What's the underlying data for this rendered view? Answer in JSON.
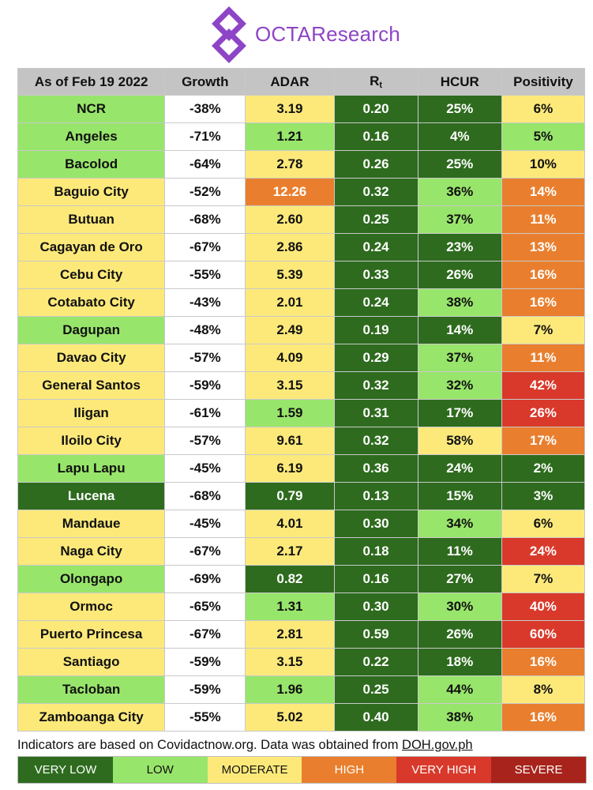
{
  "brand": {
    "name": "OCTAResearch",
    "accent": "#8e44c6"
  },
  "table": {
    "columns": {
      "as_of": "As of Feb 19 2022",
      "growth": "Growth",
      "adar": "ADAR",
      "rt_base": "R",
      "rt_sub": "t",
      "hcur": "HCUR",
      "positivity": "Positivity"
    },
    "rows": [
      {
        "name": "NCR",
        "name_level": "l",
        "growth": "-38%",
        "adar": "3.19",
        "adar_level": "m",
        "rt": "0.20",
        "rt_level": "vl",
        "hcur": "25%",
        "hcur_level": "vl",
        "pos": "6%",
        "pos_level": "m"
      },
      {
        "name": "Angeles",
        "name_level": "l",
        "growth": "-71%",
        "adar": "1.21",
        "adar_level": "l",
        "rt": "0.16",
        "rt_level": "vl",
        "hcur": "4%",
        "hcur_level": "vl",
        "pos": "5%",
        "pos_level": "l"
      },
      {
        "name": "Bacolod",
        "name_level": "l",
        "growth": "-64%",
        "adar": "2.78",
        "adar_level": "m",
        "rt": "0.26",
        "rt_level": "vl",
        "hcur": "25%",
        "hcur_level": "vl",
        "pos": "10%",
        "pos_level": "m"
      },
      {
        "name": "Baguio City",
        "name_level": "m",
        "growth": "-52%",
        "adar": "12.26",
        "adar_level": "h",
        "rt": "0.32",
        "rt_level": "vl",
        "hcur": "36%",
        "hcur_level": "l",
        "pos": "14%",
        "pos_level": "h"
      },
      {
        "name": "Butuan",
        "name_level": "m",
        "growth": "-68%",
        "adar": "2.60",
        "adar_level": "m",
        "rt": "0.25",
        "rt_level": "vl",
        "hcur": "37%",
        "hcur_level": "l",
        "pos": "11%",
        "pos_level": "h"
      },
      {
        "name": "Cagayan de Oro",
        "name_level": "m",
        "growth": "-67%",
        "adar": "2.86",
        "adar_level": "m",
        "rt": "0.24",
        "rt_level": "vl",
        "hcur": "23%",
        "hcur_level": "vl",
        "pos": "13%",
        "pos_level": "h"
      },
      {
        "name": "Cebu City",
        "name_level": "m",
        "growth": "-55%",
        "adar": "5.39",
        "adar_level": "m",
        "rt": "0.33",
        "rt_level": "vl",
        "hcur": "26%",
        "hcur_level": "vl",
        "pos": "16%",
        "pos_level": "h"
      },
      {
        "name": "Cotabato City",
        "name_level": "m",
        "growth": "-43%",
        "adar": "2.01",
        "adar_level": "m",
        "rt": "0.24",
        "rt_level": "vl",
        "hcur": "38%",
        "hcur_level": "l",
        "pos": "16%",
        "pos_level": "h"
      },
      {
        "name": "Dagupan",
        "name_level": "l",
        "growth": "-48%",
        "adar": "2.49",
        "adar_level": "m",
        "rt": "0.19",
        "rt_level": "vl",
        "hcur": "14%",
        "hcur_level": "vl",
        "pos": "7%",
        "pos_level": "m"
      },
      {
        "name": "Davao City",
        "name_level": "m",
        "growth": "-57%",
        "adar": "4.09",
        "adar_level": "m",
        "rt": "0.29",
        "rt_level": "vl",
        "hcur": "37%",
        "hcur_level": "l",
        "pos": "11%",
        "pos_level": "h"
      },
      {
        "name": "General Santos",
        "name_level": "m",
        "growth": "-59%",
        "adar": "3.15",
        "adar_level": "m",
        "rt": "0.32",
        "rt_level": "vl",
        "hcur": "32%",
        "hcur_level": "l",
        "pos": "42%",
        "pos_level": "vh"
      },
      {
        "name": "Iligan",
        "name_level": "m",
        "growth": "-61%",
        "adar": "1.59",
        "adar_level": "l",
        "rt": "0.31",
        "rt_level": "vl",
        "hcur": "17%",
        "hcur_level": "vl",
        "pos": "26%",
        "pos_level": "vh"
      },
      {
        "name": "Iloilo City",
        "name_level": "m",
        "growth": "-57%",
        "adar": "9.61",
        "adar_level": "m",
        "rt": "0.32",
        "rt_level": "vl",
        "hcur": "58%",
        "hcur_level": "m",
        "pos": "17%",
        "pos_level": "h"
      },
      {
        "name": "Lapu Lapu",
        "name_level": "l",
        "growth": "-45%",
        "adar": "6.19",
        "adar_level": "m",
        "rt": "0.36",
        "rt_level": "vl",
        "hcur": "24%",
        "hcur_level": "vl",
        "pos": "2%",
        "pos_level": "vl"
      },
      {
        "name": "Lucena",
        "name_level": "vl",
        "growth": "-68%",
        "adar": "0.79",
        "adar_level": "vl",
        "rt": "0.13",
        "rt_level": "vl",
        "hcur": "15%",
        "hcur_level": "vl",
        "pos": "3%",
        "pos_level": "vl"
      },
      {
        "name": "Mandaue",
        "name_level": "m",
        "growth": "-45%",
        "adar": "4.01",
        "adar_level": "m",
        "rt": "0.30",
        "rt_level": "vl",
        "hcur": "34%",
        "hcur_level": "l",
        "pos": "6%",
        "pos_level": "m"
      },
      {
        "name": "Naga City",
        "name_level": "m",
        "growth": "-67%",
        "adar": "2.17",
        "adar_level": "m",
        "rt": "0.18",
        "rt_level": "vl",
        "hcur": "11%",
        "hcur_level": "vl",
        "pos": "24%",
        "pos_level": "vh"
      },
      {
        "name": "Olongapo",
        "name_level": "l",
        "growth": "-69%",
        "adar": "0.82",
        "adar_level": "vl",
        "rt": "0.16",
        "rt_level": "vl",
        "hcur": "27%",
        "hcur_level": "vl",
        "pos": "7%",
        "pos_level": "m"
      },
      {
        "name": "Ormoc",
        "name_level": "m",
        "growth": "-65%",
        "adar": "1.31",
        "adar_level": "l",
        "rt": "0.30",
        "rt_level": "vl",
        "hcur": "30%",
        "hcur_level": "l",
        "pos": "40%",
        "pos_level": "vh"
      },
      {
        "name": "Puerto Princesa",
        "name_level": "m",
        "growth": "-67%",
        "adar": "2.81",
        "adar_level": "m",
        "rt": "0.59",
        "rt_level": "vl",
        "hcur": "26%",
        "hcur_level": "vl",
        "pos": "60%",
        "pos_level": "vh"
      },
      {
        "name": "Santiago",
        "name_level": "m",
        "growth": "-59%",
        "adar": "3.15",
        "adar_level": "m",
        "rt": "0.22",
        "rt_level": "vl",
        "hcur": "18%",
        "hcur_level": "vl",
        "pos": "16%",
        "pos_level": "h"
      },
      {
        "name": "Tacloban",
        "name_level": "l",
        "growth": "-59%",
        "adar": "1.96",
        "adar_level": "l",
        "rt": "0.25",
        "rt_level": "vl",
        "hcur": "44%",
        "hcur_level": "l",
        "pos": "8%",
        "pos_level": "m"
      },
      {
        "name": "Zamboanga City",
        "name_level": "m",
        "growth": "-55%",
        "adar": "5.02",
        "adar_level": "m",
        "rt": "0.40",
        "rt_level": "vl",
        "hcur": "38%",
        "hcur_level": "l",
        "pos": "16%",
        "pos_level": "h"
      }
    ]
  },
  "footnote": {
    "text": "Indicators are based on Covidactnow.org. Data was obtained from ",
    "link": "DOH.gov.ph"
  },
  "legend": [
    {
      "label": "VERY LOW",
      "level": "vl"
    },
    {
      "label": "LOW",
      "level": "l"
    },
    {
      "label": "MODERATE",
      "level": "m"
    },
    {
      "label": "HIGH",
      "level": "h"
    },
    {
      "label": "VERY HIGH",
      "level": "vh"
    },
    {
      "label": "SEVERE",
      "level": "s"
    }
  ],
  "colors": {
    "very_low": "#2e6b1e",
    "low": "#98e56b",
    "moderate": "#fce97a",
    "high": "#e97f2e",
    "very_high": "#d9392b",
    "severe": "#a8231b"
  }
}
